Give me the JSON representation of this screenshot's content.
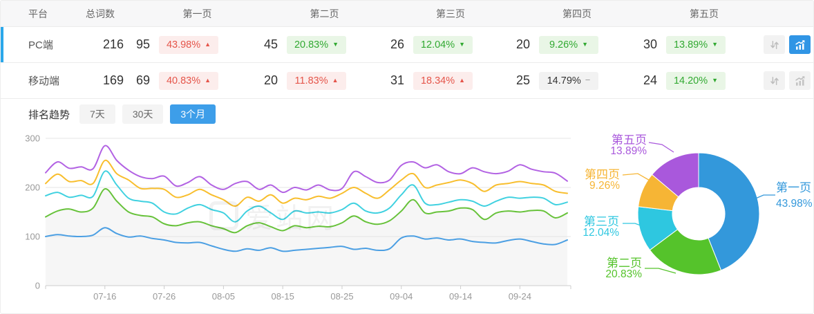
{
  "table": {
    "columns": [
      "平台",
      "总词数",
      "第一页",
      "第二页",
      "第三页",
      "第四页",
      "第五页"
    ],
    "rows": [
      {
        "platform": "PC端",
        "total": "216",
        "selected": true,
        "chart_active": true,
        "pages": [
          {
            "count": "95",
            "pct": "43.98%",
            "trend": "up"
          },
          {
            "count": "45",
            "pct": "20.83%",
            "trend": "down"
          },
          {
            "count": "26",
            "pct": "12.04%",
            "trend": "down"
          },
          {
            "count": "20",
            "pct": "9.26%",
            "trend": "down"
          },
          {
            "count": "30",
            "pct": "13.89%",
            "trend": "down"
          }
        ]
      },
      {
        "platform": "移动端",
        "total": "169",
        "selected": false,
        "chart_active": false,
        "pages": [
          {
            "count": "69",
            "pct": "40.83%",
            "trend": "up"
          },
          {
            "count": "20",
            "pct": "11.83%",
            "trend": "up"
          },
          {
            "count": "31",
            "pct": "18.34%",
            "trend": "up"
          },
          {
            "count": "25",
            "pct": "14.79%",
            "trend": "flat"
          },
          {
            "count": "24",
            "pct": "14.20%",
            "trend": "down"
          }
        ]
      }
    ]
  },
  "trend_tabs": {
    "label": "排名趋势",
    "options": [
      {
        "label": "7天",
        "active": false
      },
      {
        "label": "30天",
        "active": false
      },
      {
        "label": "3个月",
        "active": true
      }
    ]
  },
  "watermark": "爱站网",
  "chart_data": [
    {
      "type": "line",
      "title": "排名趋势(3个月)",
      "x_total_days": 88,
      "x_step_days": 2,
      "x_tick_labels": [
        "07-16",
        "07-26",
        "08-05",
        "08-15",
        "08-25",
        "09-04",
        "09-14",
        "09-24"
      ],
      "x_tick_days": [
        10,
        20,
        30,
        40,
        50,
        60,
        70,
        80
      ],
      "ylim": [
        0,
        300
      ],
      "y_ticks": [
        0,
        100,
        200,
        300
      ],
      "grid": true,
      "legend": "none",
      "series": [
        {
          "name": "第一页",
          "color": "#4b9fe3",
          "values": [
            100,
            104,
            101,
            100,
            103,
            118,
            106,
            99,
            101,
            96,
            93,
            88,
            87,
            88,
            81,
            74,
            70,
            75,
            72,
            77,
            70,
            72,
            74,
            76,
            78,
            80,
            74,
            76,
            72,
            75,
            97,
            101,
            95,
            97,
            93,
            95,
            90,
            88,
            87,
            92,
            95,
            90,
            85,
            84,
            93
          ]
        },
        {
          "name": "第二页",
          "color": "#67c23a",
          "fill": "#f6f6f6",
          "values": [
            140,
            152,
            156,
            150,
            158,
            197,
            172,
            150,
            143,
            140,
            126,
            122,
            128,
            130,
            122,
            116,
            108,
            122,
            128,
            120,
            112,
            122,
            118,
            121,
            120,
            128,
            142,
            130,
            125,
            132,
            152,
            175,
            148,
            150,
            152,
            158,
            155,
            135,
            148,
            152,
            150,
            153,
            152,
            138,
            148
          ]
        },
        {
          "name": "第三页",
          "color": "#40d1e0",
          "values": [
            183,
            190,
            180,
            184,
            182,
            233,
            205,
            178,
            172,
            168,
            150,
            146,
            158,
            165,
            155,
            148,
            130,
            152,
            162,
            148,
            135,
            152,
            148,
            150,
            148,
            155,
            168,
            152,
            148,
            158,
            185,
            205,
            168,
            165,
            170,
            175,
            172,
            162,
            172,
            180,
            178,
            180,
            178,
            165,
            170
          ]
        },
        {
          "name": "第四页",
          "color": "#f8be2d",
          "values": [
            208,
            227,
            212,
            214,
            208,
            255,
            228,
            215,
            198,
            198,
            196,
            180,
            185,
            196,
            185,
            175,
            162,
            180,
            172,
            185,
            168,
            178,
            175,
            182,
            178,
            188,
            200,
            188,
            178,
            195,
            215,
            228,
            200,
            205,
            210,
            215,
            208,
            192,
            205,
            208,
            212,
            208,
            205,
            192,
            188
          ]
        },
        {
          "name": "第五页",
          "color": "#b262e3",
          "values": [
            230,
            252,
            239,
            242,
            238,
            285,
            255,
            235,
            222,
            218,
            223,
            203,
            210,
            222,
            205,
            196,
            208,
            212,
            196,
            205,
            190,
            200,
            195,
            205,
            195,
            198,
            232,
            222,
            210,
            215,
            245,
            252,
            240,
            246,
            232,
            228,
            240,
            232,
            228,
            233,
            246,
            237,
            232,
            229,
            213
          ]
        }
      ]
    },
    {
      "type": "donut",
      "slices": [
        {
          "label": "第一页",
          "value": 43.98,
          "display": "43.98%",
          "color": "#3398db"
        },
        {
          "label": "第二页",
          "value": 20.83,
          "display": "20.83%",
          "color": "#55c32b"
        },
        {
          "label": "第三页",
          "value": 12.04,
          "display": "12.04%",
          "color": "#2ec7e0"
        },
        {
          "label": "第四页",
          "value": 9.26,
          "display": "9.26%",
          "color": "#f6b535"
        },
        {
          "label": "第五页",
          "value": 13.89,
          "display": "13.89%",
          "color": "#a958dc"
        }
      ]
    }
  ]
}
